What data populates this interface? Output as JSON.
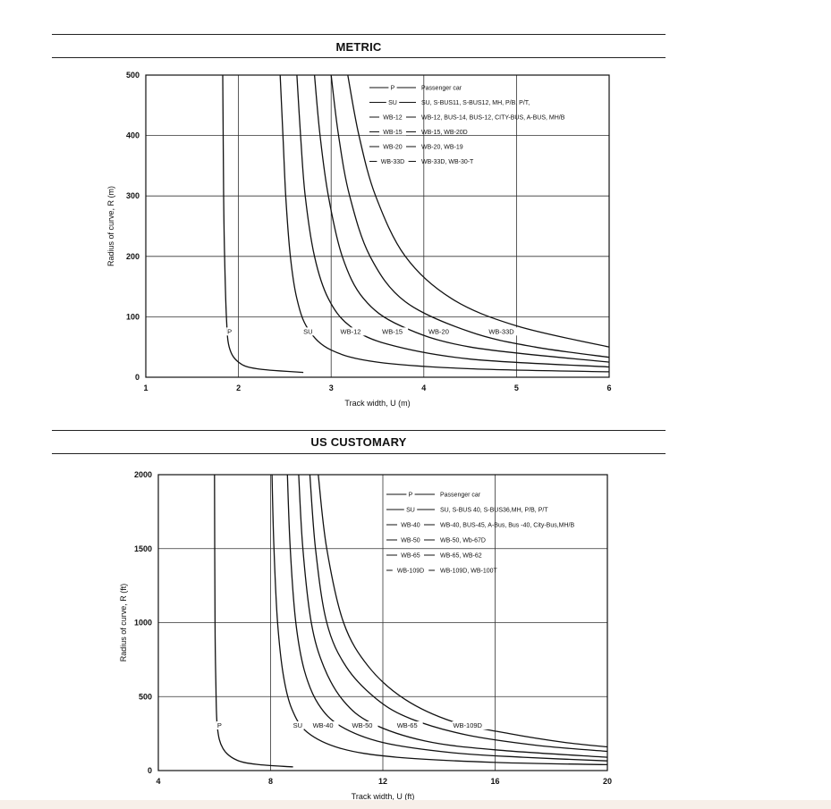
{
  "sections": {
    "metric_title": "METRIC",
    "us_title": "US CUSTOMARY"
  },
  "chart_data": [
    {
      "type": "line",
      "title": "METRIC",
      "xlabel": "Track width, U (m)",
      "ylabel": "Radius of curve, R (m)",
      "xlim": [
        1,
        6
      ],
      "ylim": [
        0,
        500
      ],
      "xticks": [
        1,
        2,
        3,
        4,
        5,
        6
      ],
      "yticks": [
        0,
        100,
        200,
        300,
        400,
        500
      ],
      "grid": true,
      "legend_position": "top-right",
      "legend": [
        {
          "code": "P",
          "desc": "Passenger car"
        },
        {
          "code": "SU",
          "desc": "SU, S-BUS11, S-BUS12, MH, P/B, P/T,"
        },
        {
          "code": "WB-12",
          "desc": "WB-12, BUS-14, BUS-12, CITY-BUS, A-BUS, MH/B"
        },
        {
          "code": "WB-15",
          "desc": "WB-15, WB-20D"
        },
        {
          "code": "WB-20",
          "desc": "WB-20, WB-19"
        },
        {
          "code": "WB-33D",
          "desc": "WB-33D, WB-30-T"
        }
      ],
      "series": [
        {
          "name": "P",
          "label_at": [
            1.88,
            72
          ],
          "points": [
            [
              1.83,
              500
            ],
            [
              1.84,
              300
            ],
            [
              1.85,
              200
            ],
            [
              1.87,
              100
            ],
            [
              1.9,
              50
            ],
            [
              2.0,
              25
            ],
            [
              2.2,
              14
            ],
            [
              2.7,
              8
            ]
          ]
        },
        {
          "name": "SU",
          "label_at": [
            2.7,
            72
          ],
          "points": [
            [
              2.45,
              500
            ],
            [
              2.48,
              400
            ],
            [
              2.51,
              300
            ],
            [
              2.56,
              200
            ],
            [
              2.63,
              130
            ],
            [
              2.75,
              80
            ],
            [
              3.0,
              45
            ],
            [
              3.5,
              25
            ],
            [
              4.5,
              14
            ],
            [
              6.0,
              9
            ]
          ]
        },
        {
          "name": "WB-12",
          "label_at": [
            3.1,
            72
          ],
          "points": [
            [
              2.63,
              500
            ],
            [
              2.67,
              400
            ],
            [
              2.72,
              300
            ],
            [
              2.82,
              200
            ],
            [
              2.97,
              130
            ],
            [
              3.2,
              85
            ],
            [
              3.6,
              55
            ],
            [
              4.5,
              30
            ],
            [
              6.0,
              17
            ]
          ]
        },
        {
          "name": "WB-15",
          "label_at": [
            3.55,
            72
          ],
          "points": [
            [
              2.82,
              500
            ],
            [
              2.88,
              400
            ],
            [
              2.97,
              300
            ],
            [
              3.12,
              200
            ],
            [
              3.35,
              130
            ],
            [
              3.75,
              85
            ],
            [
              4.5,
              50
            ],
            [
              6.0,
              25
            ]
          ]
        },
        {
          "name": "WB-20",
          "label_at": [
            4.05,
            72
          ],
          "points": [
            [
              3.0,
              500
            ],
            [
              3.08,
              400
            ],
            [
              3.2,
              300
            ],
            [
              3.42,
              200
            ],
            [
              3.8,
              125
            ],
            [
              4.5,
              75
            ],
            [
              5.2,
              50
            ],
            [
              6.0,
              33
            ]
          ]
        },
        {
          "name": "WB-33D",
          "label_at": [
            4.7,
            72
          ],
          "points": [
            [
              3.18,
              500
            ],
            [
              3.3,
              400
            ],
            [
              3.48,
              300
            ],
            [
              3.8,
              200
            ],
            [
              4.3,
              130
            ],
            [
              5.0,
              85
            ],
            [
              6.0,
              50
            ]
          ]
        }
      ]
    },
    {
      "type": "line",
      "title": "US CUSTOMARY",
      "xlabel": "Track width, U (ft)",
      "ylabel": "Radius of curve, R (ft)",
      "xlim": [
        4,
        20
      ],
      "ylim": [
        0,
        2000
      ],
      "xticks": [
        4,
        8,
        12,
        16,
        20
      ],
      "yticks": [
        0,
        500,
        1000,
        1500,
        2000
      ],
      "grid": true,
      "legend_position": "top-right",
      "legend": [
        {
          "code": "P",
          "desc": "Passenger car"
        },
        {
          "code": "SU",
          "desc": "SU, S-BUS 40, S-BUS36,MH, P/B, P/T"
        },
        {
          "code": "WB-40",
          "desc": "WB-40, BUS-45, A-Bus, Bus -40, City-Bus,MH/B"
        },
        {
          "code": "WB-50",
          "desc": "WB-50, Wb-67D"
        },
        {
          "code": "WB-65",
          "desc": "WB-65, WB-62"
        },
        {
          "code": "WB-109D",
          "desc": "WB-109D, WB-100T"
        }
      ],
      "series": [
        {
          "name": "P",
          "label_at": [
            6.1,
            290
          ],
          "points": [
            [
              6.0,
              2000
            ],
            [
              6.02,
              1000
            ],
            [
              6.05,
              600
            ],
            [
              6.1,
              300
            ],
            [
              6.3,
              150
            ],
            [
              6.8,
              70
            ],
            [
              7.6,
              40
            ],
            [
              8.8,
              25
            ]
          ]
        },
        {
          "name": "SU",
          "label_at": [
            8.8,
            290
          ],
          "points": [
            [
              8.05,
              2000
            ],
            [
              8.12,
              1500
            ],
            [
              8.25,
              1000
            ],
            [
              8.45,
              650
            ],
            [
              8.75,
              420
            ],
            [
              9.3,
              260
            ],
            [
              10.5,
              150
            ],
            [
              12.5,
              90
            ],
            [
              16.0,
              55
            ],
            [
              20.0,
              40
            ]
          ]
        },
        {
          "name": "WB-40",
          "label_at": [
            9.5,
            290
          ],
          "points": [
            [
              8.6,
              2000
            ],
            [
              8.7,
              1500
            ],
            [
              8.9,
              1000
            ],
            [
              9.2,
              680
            ],
            [
              9.7,
              450
            ],
            [
              10.5,
              300
            ],
            [
              12.0,
              190
            ],
            [
              14.5,
              120
            ],
            [
              17.0,
              90
            ],
            [
              20.0,
              65
            ]
          ]
        },
        {
          "name": "WB-50",
          "label_at": [
            10.9,
            290
          ],
          "points": [
            [
              9.0,
              2000
            ],
            [
              9.15,
              1500
            ],
            [
              9.45,
              1000
            ],
            [
              9.9,
              700
            ],
            [
              10.6,
              470
            ],
            [
              11.6,
              320
            ],
            [
              13.5,
              200
            ],
            [
              16.0,
              140
            ],
            [
              20.0,
              90
            ]
          ]
        },
        {
          "name": "WB-65",
          "label_at": [
            12.5,
            290
          ],
          "points": [
            [
              9.4,
              2000
            ],
            [
              9.6,
              1500
            ],
            [
              10.0,
              1000
            ],
            [
              10.7,
              700
            ],
            [
              11.8,
              480
            ],
            [
              13.0,
              350
            ],
            [
              15.0,
              240
            ],
            [
              17.5,
              170
            ],
            [
              20.0,
              130
            ]
          ]
        },
        {
          "name": "WB-109D",
          "label_at": [
            14.5,
            290
          ],
          "points": [
            [
              9.7,
              2000
            ],
            [
              10.0,
              1500
            ],
            [
              10.6,
              1000
            ],
            [
              11.5,
              700
            ],
            [
              12.8,
              480
            ],
            [
              14.5,
              330
            ],
            [
              16.5,
              250
            ],
            [
              18.5,
              190
            ],
            [
              20.0,
              160
            ]
          ]
        }
      ]
    }
  ]
}
